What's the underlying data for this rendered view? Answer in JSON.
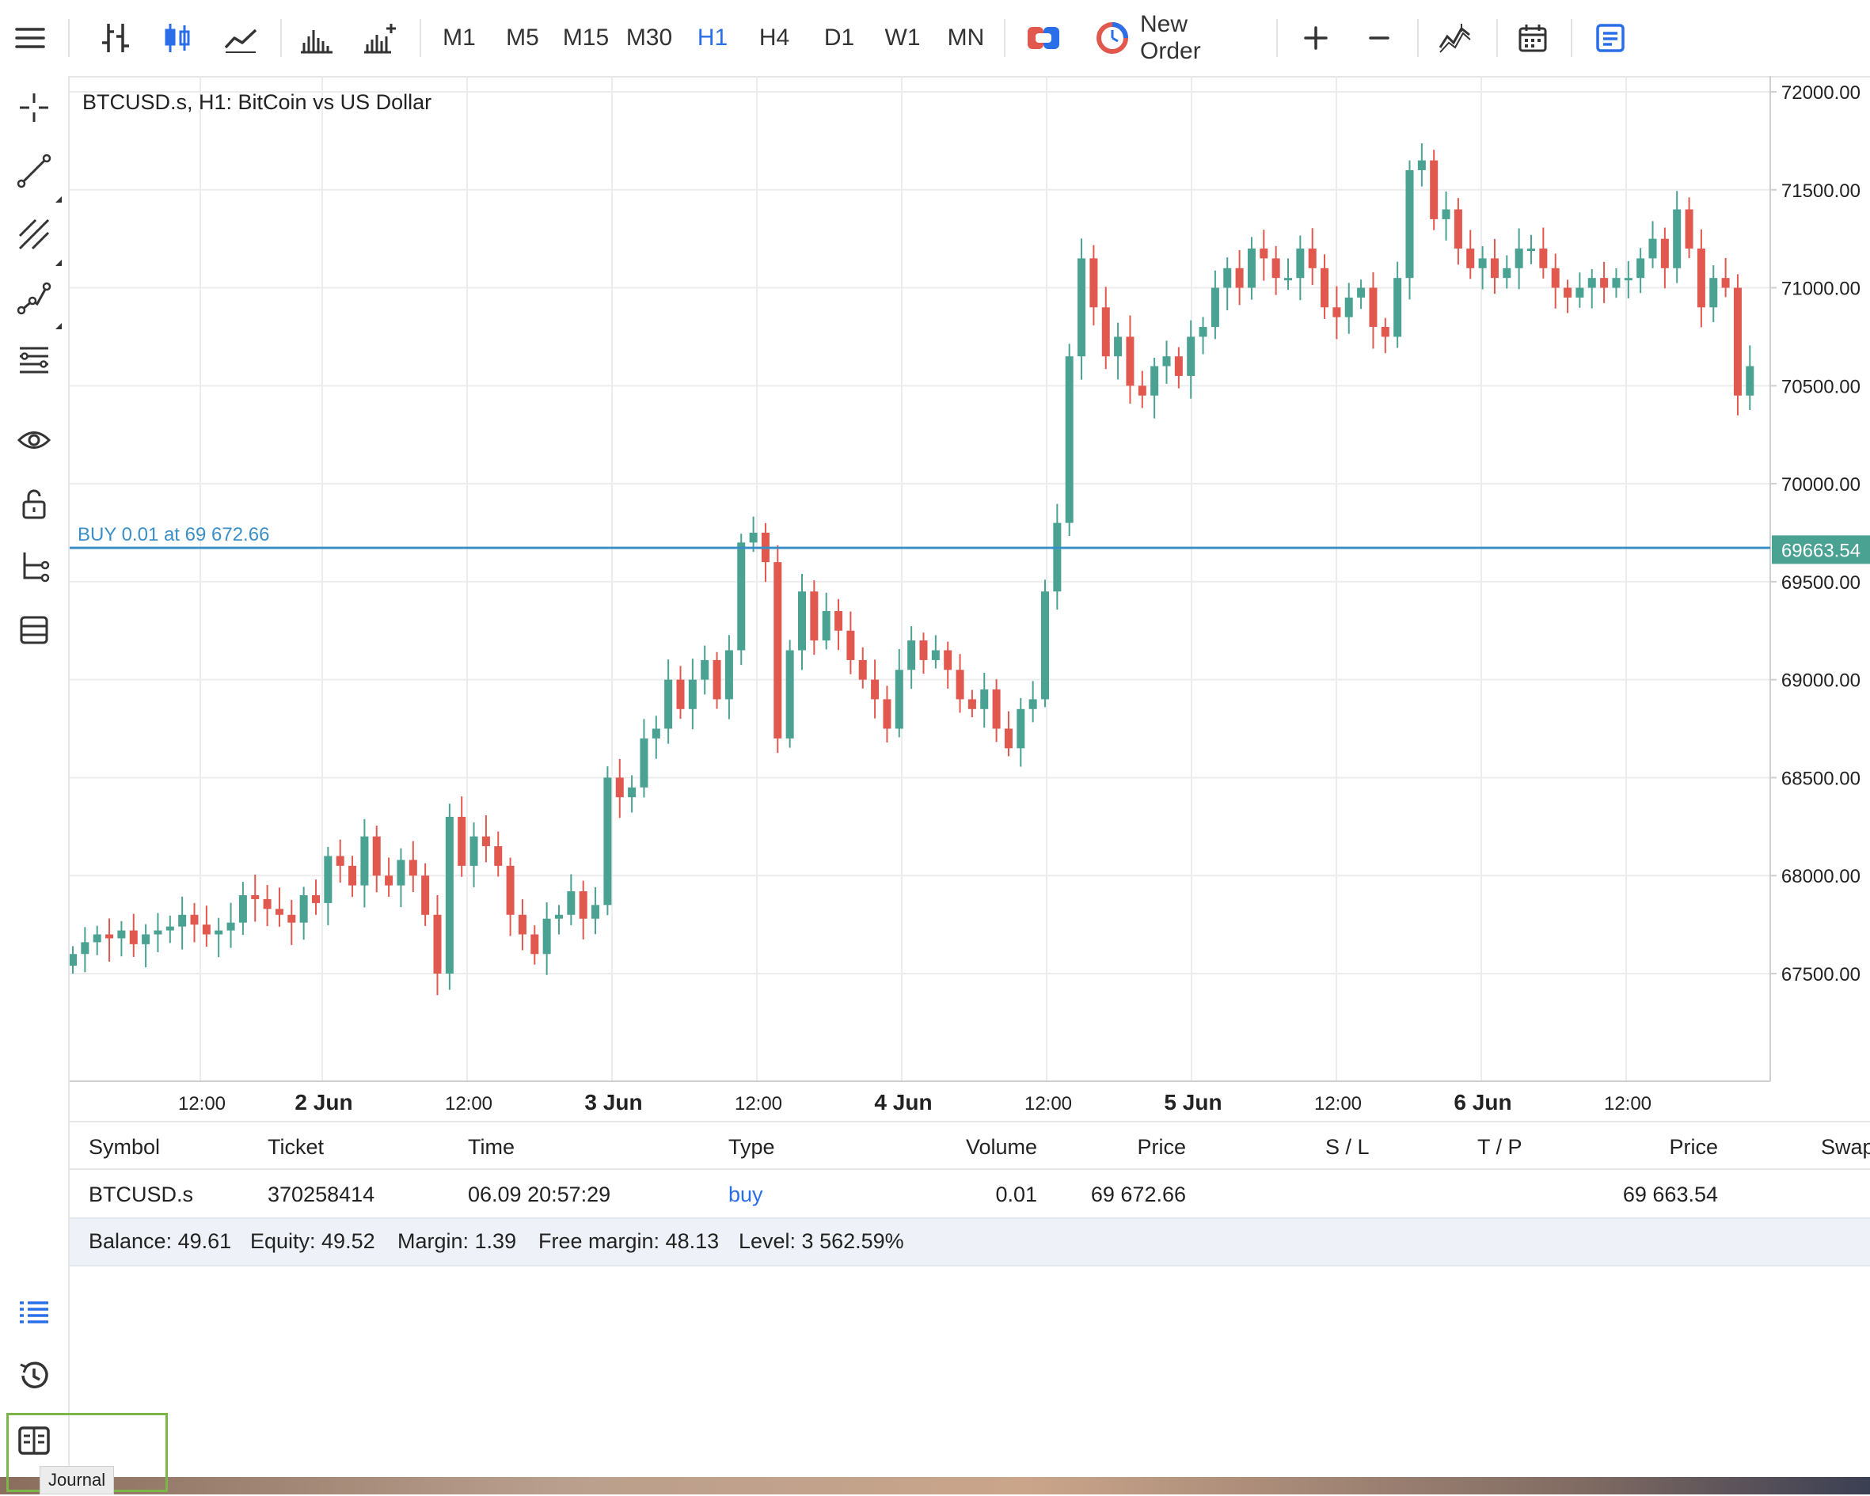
{
  "toolbar": {
    "timeframes": [
      {
        "label": "M1",
        "active": false
      },
      {
        "label": "M5",
        "active": false
      },
      {
        "label": "M15",
        "active": false
      },
      {
        "label": "M30",
        "active": false
      },
      {
        "label": "H1",
        "active": true
      },
      {
        "label": "H4",
        "active": false
      },
      {
        "label": "D1",
        "active": false
      },
      {
        "label": "W1",
        "active": false
      },
      {
        "label": "MN",
        "active": false
      }
    ],
    "new_order_label": "New Order",
    "accent_color": "#2a6ee8",
    "icons": [
      "menu-icon",
      "bar-chart-icon",
      "candlestick-icon",
      "line-chart-icon",
      "indicators-icon",
      "indicators-add-icon",
      "one-click-trading-icon",
      "new-order-icon",
      "zoom-in-icon",
      "zoom-out-icon",
      "indicators-wave-icon",
      "calendar-icon",
      "trade-panel-icon"
    ]
  },
  "sidebar": {
    "icons": [
      "crosshair-icon",
      "trendline-icon",
      "channel-icon",
      "polyline-icon",
      "fibonacci-icon",
      "eye-icon",
      "lock-icon",
      "objects-tree-icon",
      "layers-icon",
      "trade-list-icon",
      "history-icon",
      "journal-icon"
    ]
  },
  "chart": {
    "title": "BTCUSD.s, H1: BitCoin vs US Dollar",
    "order_line_label": "BUY 0.01 at 69 672.66",
    "current_price_label": "69663.54",
    "price_axis_labels": [
      "72000.00",
      "71500.00",
      "71000.00",
      "70500.00",
      "70000.00",
      "69500.00",
      "69000.00",
      "68500.00",
      "68000.00",
      "67500.00"
    ],
    "time_axis_labels": [
      {
        "text": "12:00",
        "bold": false
      },
      {
        "text": "2 Jun",
        "bold": true
      },
      {
        "text": "12:00",
        "bold": false
      },
      {
        "text": "3 Jun",
        "bold": true
      },
      {
        "text": "12:00",
        "bold": false
      },
      {
        "text": "4 Jun",
        "bold": true
      },
      {
        "text": "12:00",
        "bold": false
      },
      {
        "text": "5 Jun",
        "bold": true
      },
      {
        "text": "12:00",
        "bold": false
      },
      {
        "text": "6 Jun",
        "bold": true
      },
      {
        "text": "12:00",
        "bold": false
      }
    ],
    "colors": {
      "up": "#4aa293",
      "down": "#e0584e",
      "order_line": "#3b8fc7",
      "grid": "#ececec"
    }
  },
  "chart_data": {
    "type": "candlestick",
    "title": "BTCUSD.s, H1: BitCoin vs US Dollar",
    "ylim": [
      67000,
      72000
    ],
    "y_ticks": [
      67500,
      68000,
      68500,
      69000,
      69500,
      70000,
      70500,
      71000,
      71500,
      72000
    ],
    "order_line": 69672.66,
    "current_price": 69663.54,
    "closes": [
      67600,
      67660,
      67700,
      67680,
      67720,
      67650,
      67700,
      67720,
      67740,
      67800,
      67750,
      67700,
      67720,
      67760,
      67900,
      67880,
      67830,
      67800,
      67760,
      67900,
      67860,
      68100,
      68050,
      67950,
      68200,
      68000,
      67950,
      68080,
      68000,
      67800,
      67500,
      68300,
      68050,
      68200,
      68150,
      68050,
      67800,
      67700,
      67600,
      67780,
      67800,
      67920,
      67780,
      67850,
      68500,
      68400,
      68450,
      68700,
      68750,
      69000,
      68850,
      69000,
      69100,
      68900,
      69150,
      69700,
      69750,
      69600,
      68700,
      69150,
      69450,
      69200,
      69350,
      69250,
      69100,
      69000,
      68900,
      68750,
      69050,
      69200,
      69100,
      69150,
      69050,
      68900,
      68850,
      68950,
      68750,
      68650,
      68850,
      68900,
      69450,
      69800,
      70650,
      71150,
      70900,
      70650,
      70750,
      70500,
      70450,
      70600,
      70650,
      70550,
      70750,
      70800,
      71000,
      71100,
      71000,
      71200,
      71150,
      71050,
      71050,
      71200,
      71100,
      70900,
      70850,
      70950,
      71000,
      70800,
      70750,
      71050,
      71600,
      71650,
      71350,
      71400,
      71200,
      71100,
      71150,
      71050,
      71100,
      71200,
      71200,
      71100,
      71000,
      70950,
      71000,
      71050,
      71000,
      71050,
      71050,
      71150,
      71250,
      71100,
      71400,
      71200,
      70900,
      71050,
      71000,
      70450,
      70600
    ],
    "time_labels": [
      "12:00",
      "2 Jun",
      "12:00",
      "3 Jun",
      "12:00",
      "4 Jun",
      "12:00",
      "5 Jun",
      "12:00",
      "6 Jun",
      "12:00"
    ]
  },
  "positions": {
    "columns": [
      "Symbol",
      "Ticket",
      "Time",
      "Type",
      "Volume",
      "Price",
      "S / L",
      "T / P",
      "Price",
      "Swap"
    ],
    "rows": [
      {
        "symbol": "BTCUSD.s",
        "ticket": "370258414",
        "time": "06.09 20:57:29",
        "type": "buy",
        "volume": "0.01",
        "price": "69 672.66",
        "sl": "",
        "tp": "",
        "current_price": "69 663.54",
        "swap": ""
      }
    ],
    "summary": {
      "balance": "Balance: 49.61",
      "equity": "Equity: 49.52",
      "margin": "Margin: 1.39",
      "free_margin": "Free margin: 48.13",
      "level": "Level: 3 562.59%"
    }
  },
  "tooltip": "Journal"
}
